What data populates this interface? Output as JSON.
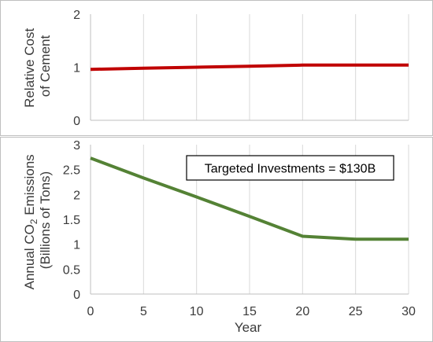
{
  "chart_data": [
    {
      "type": "line",
      "ylabel_lines": [
        "Relative Cost",
        "of Cement"
      ],
      "ylim": [
        0,
        2
      ],
      "yticks": [
        "0",
        "1",
        "2"
      ],
      "xlim": [
        0,
        30
      ],
      "grid": "vertical",
      "color": "#c00000",
      "series": [
        {
          "x": [
            0,
            5,
            10,
            15,
            20,
            25,
            30
          ],
          "values": [
            0.96,
            0.98,
            1.0,
            1.02,
            1.04,
            1.04,
            1.04
          ]
        }
      ]
    },
    {
      "type": "line",
      "ylabel_lines": [
        "Annual CO",
        "2",
        " Emissions",
        "(Billions of Tons)"
      ],
      "xlabel": "Year",
      "ylim": [
        0,
        3
      ],
      "yticks": [
        "0",
        "0.5",
        "1",
        "1.5",
        "2",
        "2.5",
        "3"
      ],
      "xlim": [
        0,
        30
      ],
      "xticks": [
        "0",
        "5",
        "10",
        "15",
        "20",
        "25",
        "30"
      ],
      "grid": "vertical",
      "color": "#548235",
      "annotation": "Targeted Investments = $130B",
      "series": [
        {
          "x": [
            0,
            5,
            10,
            15,
            20,
            25,
            30
          ],
          "values": [
            2.73,
            2.33,
            1.95,
            1.56,
            1.16,
            1.1,
            1.1
          ]
        }
      ]
    }
  ]
}
